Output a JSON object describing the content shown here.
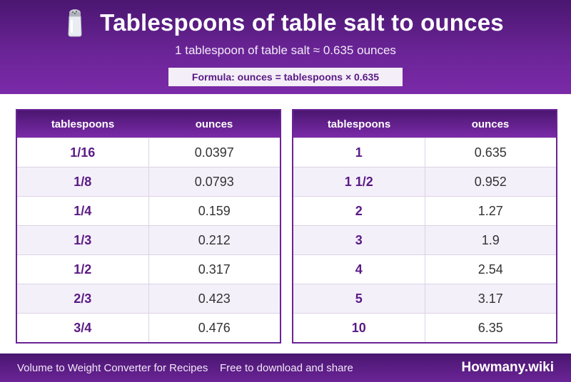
{
  "header": {
    "title": "Tablespoons of table salt to ounces",
    "subtitle": "1 tablespoon of table salt ≈ 0.635 ounces",
    "formula": "Formula: ounces = tablespoons × 0.635",
    "icon": "salt-shaker-icon"
  },
  "tables": [
    {
      "headers": [
        "tablespoons",
        "ounces"
      ],
      "rows": [
        [
          "1/16",
          "0.0397"
        ],
        [
          "1/8",
          "0.0793"
        ],
        [
          "1/4",
          "0.159"
        ],
        [
          "1/3",
          "0.212"
        ],
        [
          "1/2",
          "0.317"
        ],
        [
          "2/3",
          "0.423"
        ],
        [
          "3/4",
          "0.476"
        ]
      ]
    },
    {
      "headers": [
        "tablespoons",
        "ounces"
      ],
      "rows": [
        [
          "1",
          "0.635"
        ],
        [
          "1 1/2",
          "0.952"
        ],
        [
          "2",
          "1.27"
        ],
        [
          "3",
          "1.9"
        ],
        [
          "4",
          "2.54"
        ],
        [
          "5",
          "3.17"
        ],
        [
          "10",
          "6.35"
        ]
      ]
    }
  ],
  "footer": {
    "left_text": "Volume to Weight Converter for Recipes",
    "middle_text": "Free to download and share",
    "brand": "Howmany.wiki"
  },
  "colors": {
    "primary": "#6a2496",
    "dark": "#4a1670",
    "row_alt": "#f4f0fa"
  }
}
